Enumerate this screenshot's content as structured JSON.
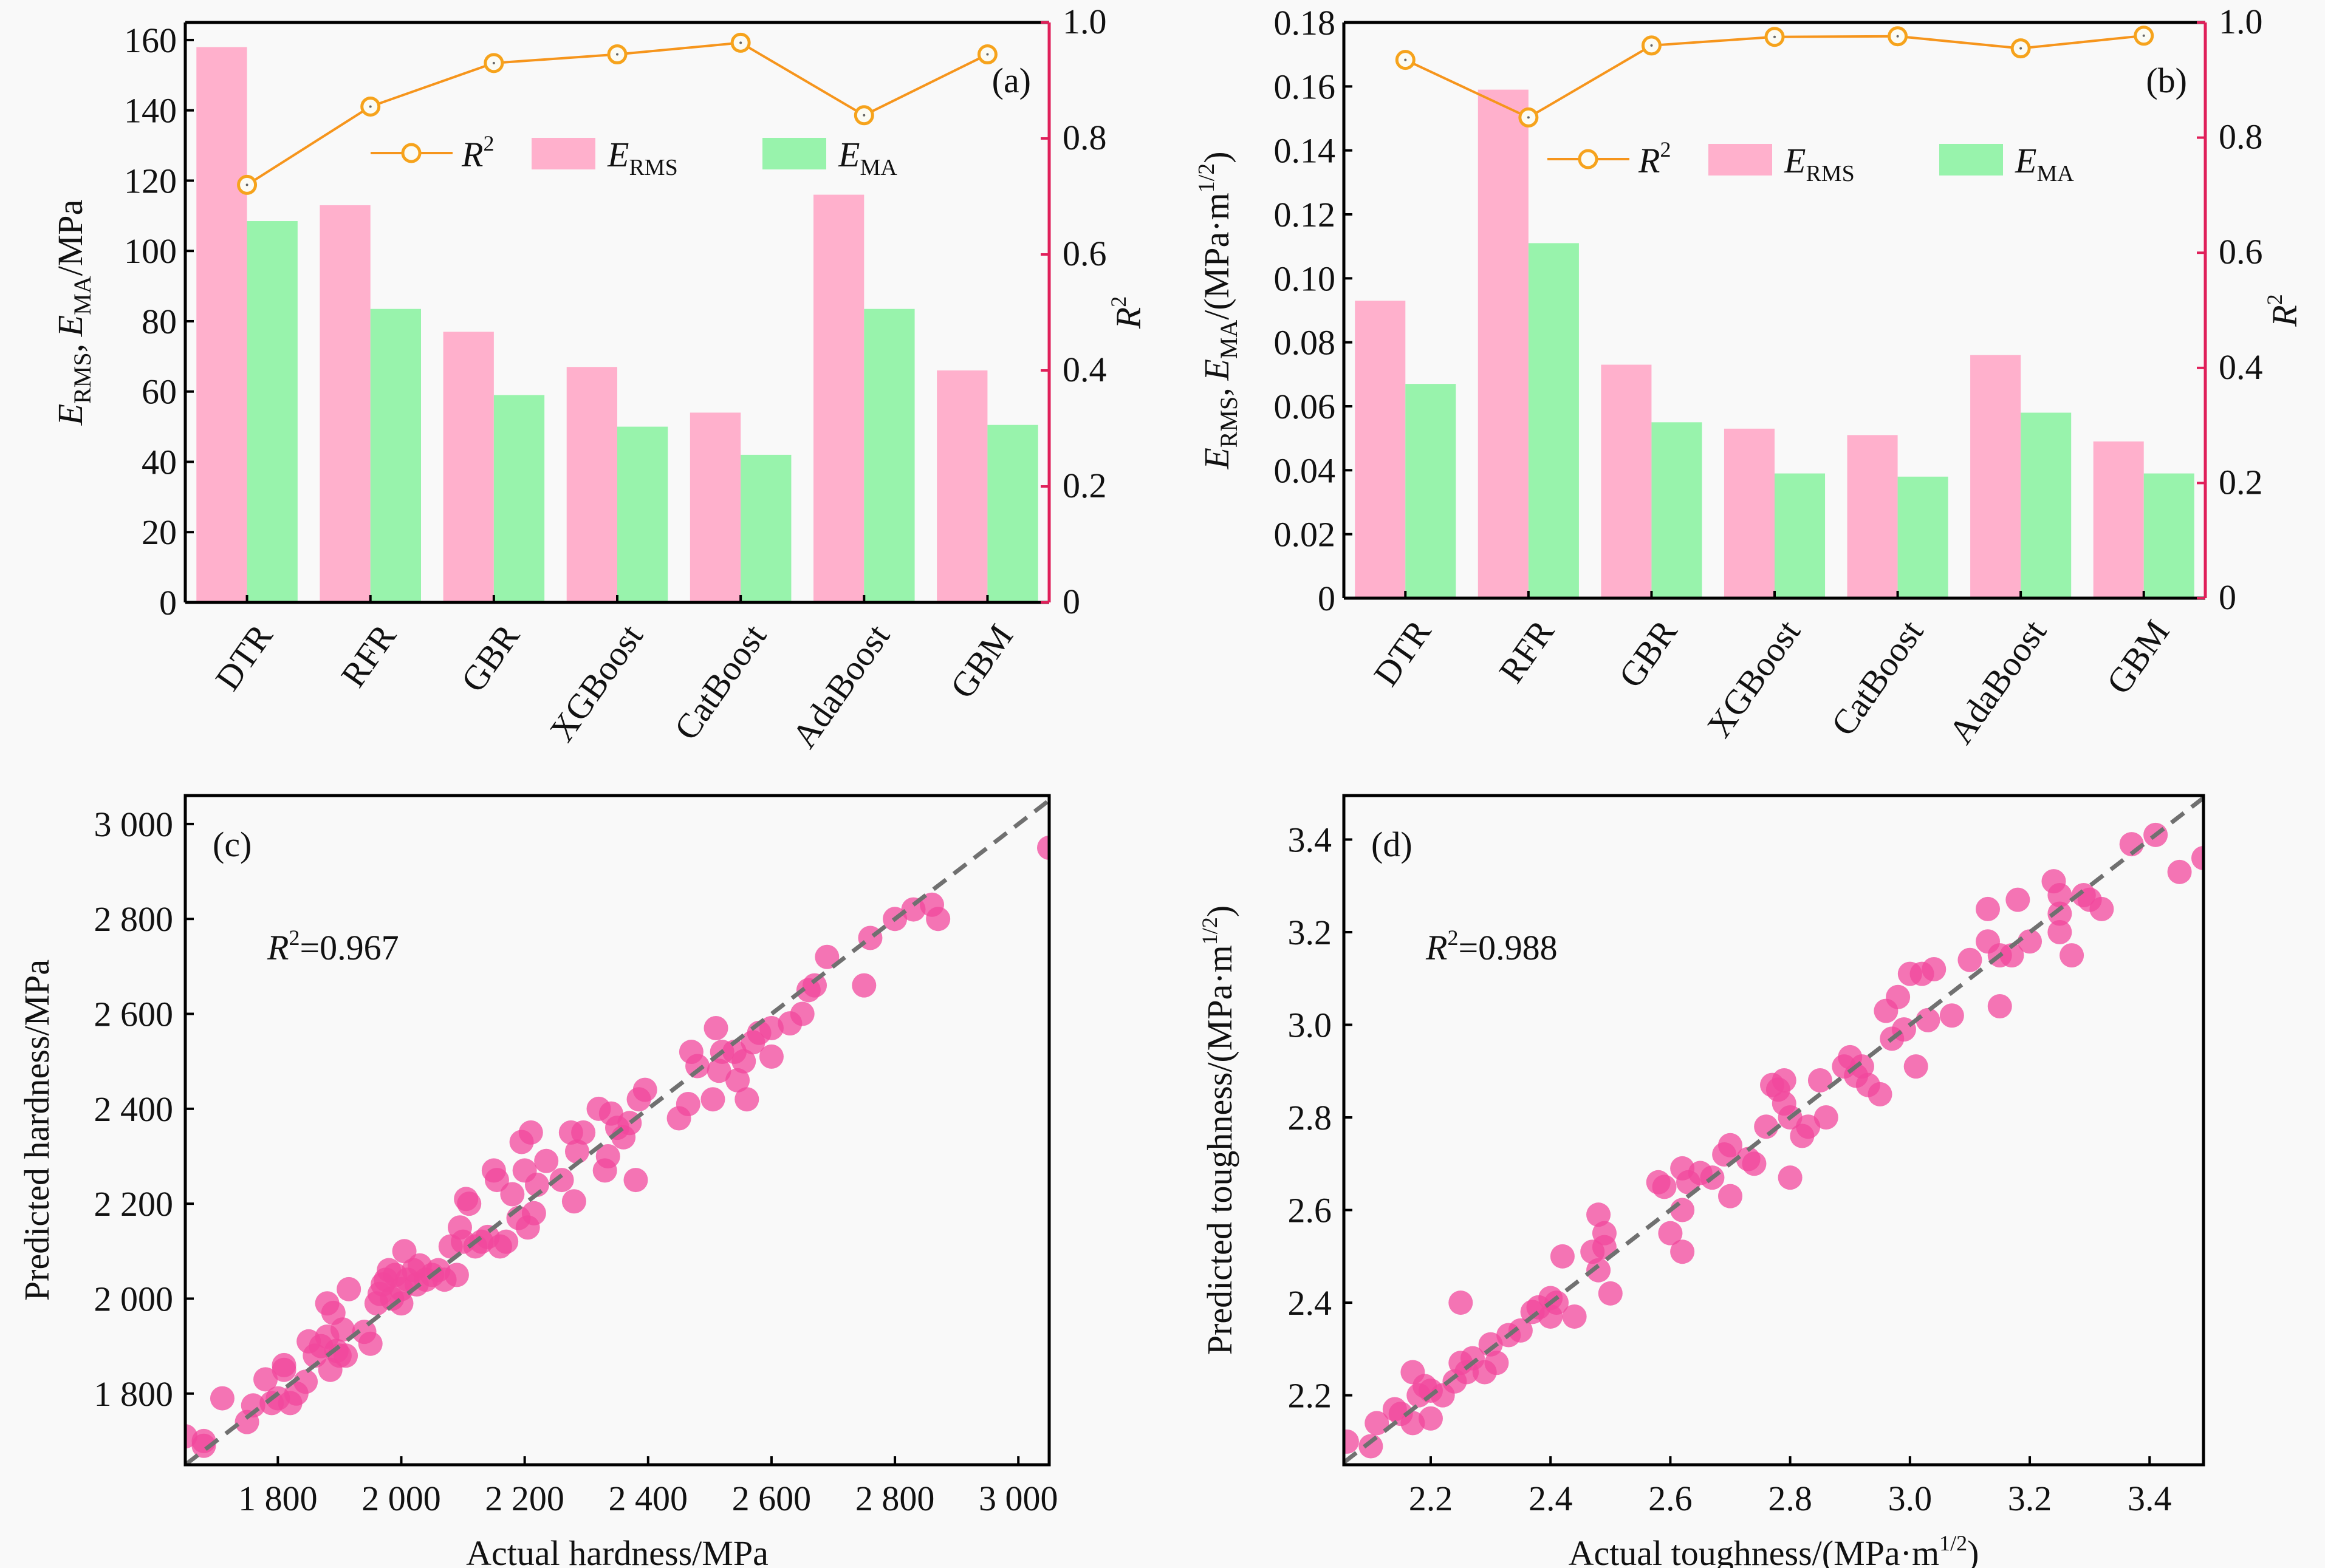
{
  "colors": {
    "erms": "#ffb0cc",
    "ema": "#98f3ac",
    "r2_line": "#f6951c",
    "r2_marker": "#f6a31c",
    "right_axis": "#e0205a",
    "scatter": "#f2479c",
    "diag": "#707070",
    "background": "#f9f9f9"
  },
  "chart_data": [
    {
      "type": "bar",
      "panel": "(a)",
      "categories": [
        "DTR",
        "RFR",
        "GBR",
        "XGBoost",
        "CatBoost",
        "AdaBoost",
        "GBM"
      ],
      "series": [
        {
          "name": "E_RMS",
          "label_main": "E",
          "label_sub": "RMS",
          "values": [
            158,
            113,
            77,
            67,
            54,
            116,
            66
          ]
        },
        {
          "name": "E_MA",
          "label_main": "E",
          "label_sub": "MA",
          "values": [
            108.5,
            83.5,
            59,
            50,
            42,
            83.5,
            50.5
          ]
        },
        {
          "name": "R2",
          "label_main": "R",
          "label_sup": "2",
          "axis": "right",
          "type": "line",
          "values": [
            0.72,
            0.855,
            0.93,
            0.945,
            0.965,
            0.84,
            0.945
          ]
        }
      ],
      "ylabel_parts": [
        "E",
        "RMS",
        ", E",
        "MA",
        "/MPa"
      ],
      "y2label": "R2",
      "ylim": [
        0,
        165
      ],
      "yticks": [
        0,
        20,
        40,
        60,
        80,
        100,
        120,
        140,
        160
      ],
      "y2lim": [
        0,
        1.0
      ],
      "y2ticks": [
        "0",
        "0.2",
        "0.4",
        "0.6",
        "0.8",
        "1.0"
      ],
      "legend": "upper-center"
    },
    {
      "type": "bar",
      "panel": "(b)",
      "categories": [
        "DTR",
        "RFR",
        "GBR",
        "XGBoost",
        "CatBoost",
        "AdaBoost",
        "GBM"
      ],
      "series": [
        {
          "name": "E_RMS",
          "label_main": "E",
          "label_sub": "RMS",
          "values": [
            0.093,
            0.159,
            0.073,
            0.053,
            0.051,
            0.076,
            0.049
          ]
        },
        {
          "name": "E_MA",
          "label_main": "E",
          "label_sub": "MA",
          "values": [
            0.067,
            0.111,
            0.055,
            0.039,
            0.038,
            0.058,
            0.039
          ]
        },
        {
          "name": "R2",
          "label_main": "R",
          "label_sup": "2",
          "axis": "right",
          "type": "line",
          "values": [
            0.935,
            0.835,
            0.96,
            0.975,
            0.976,
            0.955,
            0.977
          ]
        }
      ],
      "ylabel_parts": [
        "E",
        "RMS",
        ", E",
        "MA",
        "/(MPa·m",
        "1/2",
        ")"
      ],
      "y2label": "R2",
      "ylim": [
        0,
        0.18
      ],
      "yticks": [
        "0",
        "0.02",
        "0.04",
        "0.06",
        "0.08",
        "0.10",
        "0.12",
        "0.14",
        "0.16",
        "0.18"
      ],
      "y2lim": [
        0,
        1.0
      ],
      "y2ticks": [
        "0",
        "0.2",
        "0.4",
        "0.6",
        "0.8",
        "1.0"
      ],
      "legend": "upper-center"
    },
    {
      "type": "scatter",
      "panel": "(c)",
      "annotation": {
        "main": "R",
        "sup": "2",
        "rest": "=0.967"
      },
      "xlabel": "Actual hardness/MPa",
      "ylabel": "Predicted hardness/MPa",
      "xlim": [
        1650,
        3050
      ],
      "ylim": [
        1650,
        3060
      ],
      "xticks": [
        1800,
        2000,
        2200,
        2400,
        2600,
        2800,
        3000
      ],
      "xtick_labels": [
        "1 800",
        "2 000",
        "2 200",
        "2 400",
        "2 600",
        "2 800",
        "3 000"
      ],
      "yticks": [
        1800,
        2000,
        2200,
        2400,
        2600,
        2800,
        3000
      ],
      "ytick_labels": [
        "1 800",
        "2 000",
        "2 200",
        "2 400",
        "2 600",
        "2 800",
        "3 000"
      ],
      "diagonal": true,
      "points": [
        [
          1650,
          1710
        ],
        [
          1680,
          1700
        ],
        [
          1680,
          1690
        ],
        [
          1710,
          1790
        ],
        [
          1750,
          1740
        ],
        [
          1760,
          1775
        ],
        [
          1780,
          1830
        ],
        [
          1790,
          1780
        ],
        [
          1800,
          1790
        ],
        [
          1810,
          1860
        ],
        [
          1810,
          1850
        ],
        [
          1820,
          1780
        ],
        [
          1830,
          1800
        ],
        [
          1845,
          1825
        ],
        [
          1850,
          1910
        ],
        [
          1860,
          1880
        ],
        [
          1870,
          1900
        ],
        [
          1880,
          1990
        ],
        [
          1880,
          1920
        ],
        [
          1885,
          1850
        ],
        [
          1890,
          1970
        ],
        [
          1895,
          1890
        ],
        [
          1900,
          1880
        ],
        [
          1905,
          1935
        ],
        [
          1910,
          1880
        ],
        [
          1915,
          2020
        ],
        [
          1940,
          1930
        ],
        [
          1950,
          1905
        ],
        [
          1960,
          1990
        ],
        [
          1965,
          2010
        ],
        [
          1970,
          2030
        ],
        [
          1975,
          2040
        ],
        [
          1980,
          2060
        ],
        [
          1985,
          2000
        ],
        [
          1990,
          2050
        ],
        [
          2000,
          1990
        ],
        [
          2000,
          2020
        ],
        [
          2005,
          2100
        ],
        [
          2010,
          2040
        ],
        [
          2020,
          2060
        ],
        [
          2025,
          2030
        ],
        [
          2030,
          2070
        ],
        [
          2040,
          2040
        ],
        [
          2050,
          2050
        ],
        [
          2060,
          2060
        ],
        [
          2070,
          2040
        ],
        [
          2080,
          2110
        ],
        [
          2090,
          2050
        ],
        [
          2095,
          2150
        ],
        [
          2100,
          2120
        ],
        [
          2105,
          2210
        ],
        [
          2110,
          2200
        ],
        [
          2120,
          2110
        ],
        [
          2130,
          2120
        ],
        [
          2140,
          2130
        ],
        [
          2150,
          2270
        ],
        [
          2155,
          2250
        ],
        [
          2160,
          2110
        ],
        [
          2170,
          2120
        ],
        [
          2180,
          2220
        ],
        [
          2190,
          2170
        ],
        [
          2195,
          2330
        ],
        [
          2200,
          2270
        ],
        [
          2205,
          2150
        ],
        [
          2210,
          2350
        ],
        [
          2215,
          2180
        ],
        [
          2220,
          2240
        ],
        [
          2235,
          2290
        ],
        [
          2260,
          2250
        ],
        [
          2275,
          2350
        ],
        [
          2280,
          2205
        ],
        [
          2285,
          2310
        ],
        [
          2295,
          2350
        ],
        [
          2320,
          2400
        ],
        [
          2330,
          2270
        ],
        [
          2335,
          2300
        ],
        [
          2340,
          2390
        ],
        [
          2350,
          2360
        ],
        [
          2360,
          2340
        ],
        [
          2370,
          2370
        ],
        [
          2380,
          2250
        ],
        [
          2385,
          2420
        ],
        [
          2395,
          2440
        ],
        [
          2450,
          2380
        ],
        [
          2465,
          2410
        ],
        [
          2470,
          2520
        ],
        [
          2480,
          2490
        ],
        [
          2505,
          2420
        ],
        [
          2510,
          2570
        ],
        [
          2515,
          2480
        ],
        [
          2520,
          2520
        ],
        [
          2540,
          2520
        ],
        [
          2545,
          2460
        ],
        [
          2555,
          2500
        ],
        [
          2560,
          2420
        ],
        [
          2570,
          2540
        ],
        [
          2580,
          2560
        ],
        [
          2600,
          2510
        ],
        [
          2600,
          2570
        ],
        [
          2630,
          2580
        ],
        [
          2650,
          2600
        ],
        [
          2660,
          2650
        ],
        [
          2670,
          2660
        ],
        [
          2690,
          2720
        ],
        [
          2750,
          2660
        ],
        [
          2760,
          2760
        ],
        [
          2800,
          2800
        ],
        [
          2830,
          2820
        ],
        [
          2860,
          2830
        ],
        [
          2870,
          2800
        ],
        [
          3050,
          2950
        ]
      ]
    },
    {
      "type": "scatter",
      "panel": "(d)",
      "annotation": {
        "main": "R",
        "sup": "2",
        "rest": "=0.988"
      },
      "xlabel_parts": [
        "Actual toughness/(MPa·m",
        "1/2",
        ")"
      ],
      "ylabel_parts": [
        "Predicted toughness/(MPa·m",
        "1/2",
        ")"
      ],
      "xlim": [
        2.055,
        3.49
      ],
      "ylim": [
        2.05,
        3.495
      ],
      "xticks": [
        2.2,
        2.4,
        2.6,
        2.8,
        3.0,
        3.2,
        3.4
      ],
      "xtick_labels": [
        "2.2",
        "2.4",
        "2.6",
        "2.8",
        "3.0",
        "3.2",
        "3.4"
      ],
      "yticks": [
        2.2,
        2.4,
        2.6,
        2.8,
        3.0,
        3.2,
        3.4
      ],
      "ytick_labels": [
        "2.2",
        "2.4",
        "2.6",
        "2.8",
        "3.0",
        "3.2",
        "3.4"
      ],
      "diagonal": true,
      "points": [
        [
          2.06,
          2.1
        ],
        [
          2.1,
          2.09
        ],
        [
          2.11,
          2.14
        ],
        [
          2.14,
          2.17
        ],
        [
          2.15,
          2.16
        ],
        [
          2.17,
          2.25
        ],
        [
          2.17,
          2.14
        ],
        [
          2.18,
          2.2
        ],
        [
          2.19,
          2.22
        ],
        [
          2.2,
          2.15
        ],
        [
          2.2,
          2.21
        ],
        [
          2.22,
          2.2
        ],
        [
          2.24,
          2.23
        ],
        [
          2.25,
          2.27
        ],
        [
          2.25,
          2.4
        ],
        [
          2.26,
          2.25
        ],
        [
          2.27,
          2.28
        ],
        [
          2.29,
          2.25
        ],
        [
          2.3,
          2.31
        ],
        [
          2.31,
          2.27
        ],
        [
          2.33,
          2.33
        ],
        [
          2.35,
          2.34
        ],
        [
          2.37,
          2.38
        ],
        [
          2.38,
          2.39
        ],
        [
          2.4,
          2.37
        ],
        [
          2.4,
          2.41
        ],
        [
          2.41,
          2.4
        ],
        [
          2.42,
          2.5
        ],
        [
          2.44,
          2.37
        ],
        [
          2.47,
          2.51
        ],
        [
          2.48,
          2.47
        ],
        [
          2.48,
          2.59
        ],
        [
          2.49,
          2.55
        ],
        [
          2.49,
          2.52
        ],
        [
          2.5,
          2.42
        ],
        [
          2.58,
          2.66
        ],
        [
          2.59,
          2.65
        ],
        [
          2.6,
          2.55
        ],
        [
          2.62,
          2.51
        ],
        [
          2.62,
          2.6
        ],
        [
          2.62,
          2.69
        ],
        [
          2.63,
          2.66
        ],
        [
          2.65,
          2.68
        ],
        [
          2.67,
          2.67
        ],
        [
          2.69,
          2.72
        ],
        [
          2.7,
          2.63
        ],
        [
          2.7,
          2.74
        ],
        [
          2.73,
          2.71
        ],
        [
          2.74,
          2.7
        ],
        [
          2.76,
          2.78
        ],
        [
          2.77,
          2.87
        ],
        [
          2.78,
          2.86
        ],
        [
          2.79,
          2.88
        ],
        [
          2.79,
          2.83
        ],
        [
          2.8,
          2.8
        ],
        [
          2.8,
          2.67
        ],
        [
          2.82,
          2.76
        ],
        [
          2.83,
          2.78
        ],
        [
          2.85,
          2.88
        ],
        [
          2.86,
          2.8
        ],
        [
          2.89,
          2.91
        ],
        [
          2.9,
          2.93
        ],
        [
          2.91,
          2.89
        ],
        [
          2.92,
          2.91
        ],
        [
          2.93,
          2.87
        ],
        [
          2.95,
          2.85
        ],
        [
          2.96,
          3.03
        ],
        [
          2.97,
          2.97
        ],
        [
          2.98,
          3.06
        ],
        [
          2.99,
          2.99
        ],
        [
          3.0,
          3.11
        ],
        [
          3.01,
          2.91
        ],
        [
          3.02,
          3.11
        ],
        [
          3.03,
          3.01
        ],
        [
          3.04,
          3.12
        ],
        [
          3.07,
          3.02
        ],
        [
          3.1,
          3.14
        ],
        [
          3.13,
          3.18
        ],
        [
          3.13,
          3.25
        ],
        [
          3.15,
          3.04
        ],
        [
          3.15,
          3.15
        ],
        [
          3.17,
          3.15
        ],
        [
          3.18,
          3.27
        ],
        [
          3.2,
          3.18
        ],
        [
          3.24,
          3.31
        ],
        [
          3.25,
          3.2
        ],
        [
          3.25,
          3.24
        ],
        [
          3.25,
          3.28
        ],
        [
          3.27,
          3.15
        ],
        [
          3.29,
          3.28
        ],
        [
          3.3,
          3.27
        ],
        [
          3.32,
          3.25
        ],
        [
          3.37,
          3.39
        ],
        [
          3.41,
          3.41
        ],
        [
          3.45,
          3.33
        ],
        [
          3.49,
          3.36
        ]
      ]
    }
  ]
}
